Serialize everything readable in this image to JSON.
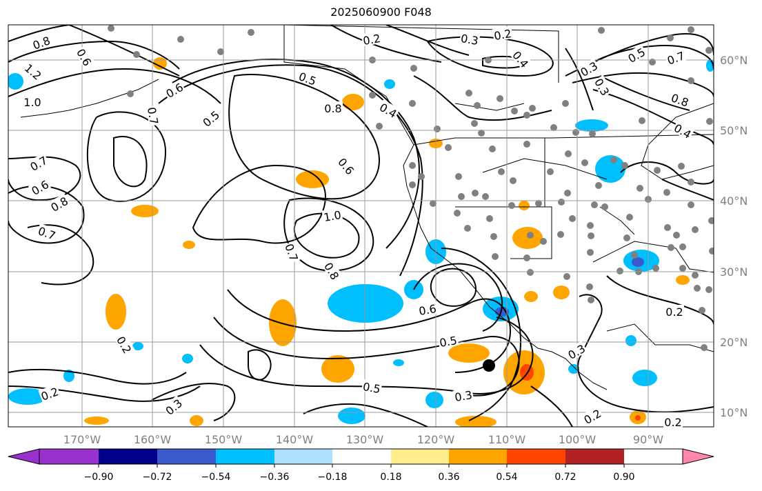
{
  "title": "2025060900 F048",
  "x_ticks": [
    "170°W",
    "160°W",
    "150°W",
    "140°W",
    "130°W",
    "120°W",
    "110°W",
    "100°W",
    "90°W"
  ],
  "y_ticks": [
    "60°N",
    "50°N",
    "40°N",
    "30°N",
    "20°N",
    "10°N"
  ],
  "colorbar": {
    "colors": [
      "#9932cc",
      "#00008b",
      "#3a5bcc",
      "#00bfff",
      "#b0e0ff",
      "#ffffff",
      "#ffec8b",
      "#ffa500",
      "#ff4500",
      "#b22222",
      "#ff88aa"
    ],
    "ticks": [
      "−0.90",
      "−0.72",
      "−0.54",
      "−0.36",
      "−0.18",
      "0.18",
      "0.36",
      "0.54",
      "0.72",
      "0.90"
    ]
  },
  "contour_labels": [
    "0.8",
    "1.2",
    "1.0",
    "0.6",
    "0.7",
    "0.6",
    "0.8",
    "0.7",
    "0.6",
    "0.5",
    "0.7",
    "0.5",
    "0.8",
    "0.4",
    "0.2",
    "0.3",
    "0.2",
    "0.4",
    "0.3",
    "0.5",
    "0.7",
    "0.3",
    "0.8",
    "0.4",
    "0.6",
    "1.0",
    "0.7",
    "0.8",
    "0.5",
    "0.6",
    "0.5",
    "0.3",
    "0.2",
    "0.2",
    "0.3",
    "0.2",
    "0.3",
    "0.2",
    "0.2"
  ]
}
